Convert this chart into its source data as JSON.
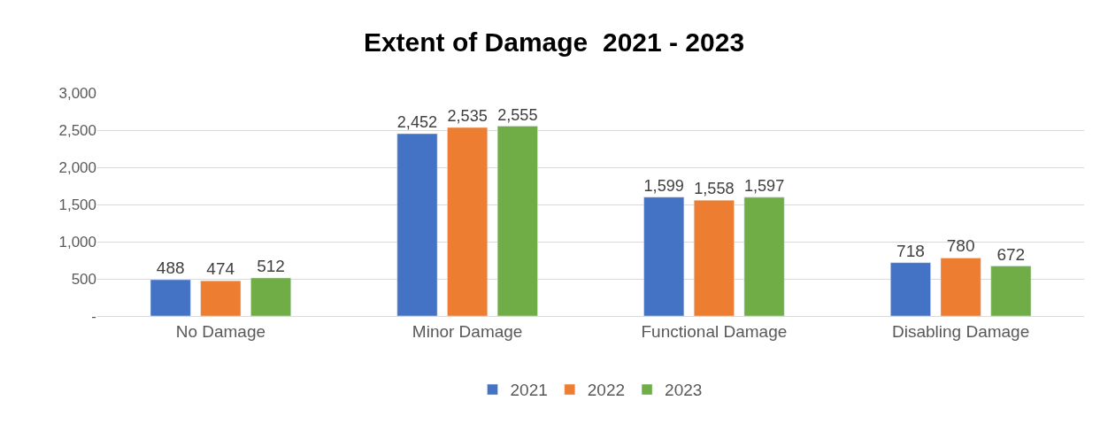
{
  "chart_data": {
    "type": "bar",
    "title": "Extent of Damage  2021 - 2023",
    "categories": [
      "No Damage",
      "Minor Damage",
      "Functional Damage",
      "Disabling Damage"
    ],
    "series": [
      {
        "name": "2021",
        "color": "#4472c4",
        "values": [
          488,
          2452,
          1599,
          718
        ],
        "value_labels": [
          "488",
          "2,452",
          "1,599",
          "718"
        ]
      },
      {
        "name": "2022",
        "color": "#ed7d31",
        "values": [
          474,
          2535,
          1558,
          780
        ],
        "value_labels": [
          "474",
          "2,535",
          "1,558",
          "780"
        ]
      },
      {
        "name": "2023",
        "color": "#70ad47",
        "values": [
          512,
          2555,
          1597,
          672
        ],
        "value_labels": [
          "512",
          "2,555",
          "1,597",
          "672"
        ]
      }
    ],
    "ylim": [
      0,
      3000
    ],
    "yticks": [
      {
        "value": 0,
        "label": "-"
      },
      500,
      {
        "value": 1000,
        "label": "1,000"
      },
      {
        "value": 1500,
        "label": "1,500"
      },
      {
        "value": 2000,
        "label": "2,000"
      },
      {
        "value": 2500,
        "label": "2,500"
      },
      {
        "value": 3000,
        "label": "3,000"
      }
    ],
    "grid": "y",
    "legend": "bottom"
  }
}
